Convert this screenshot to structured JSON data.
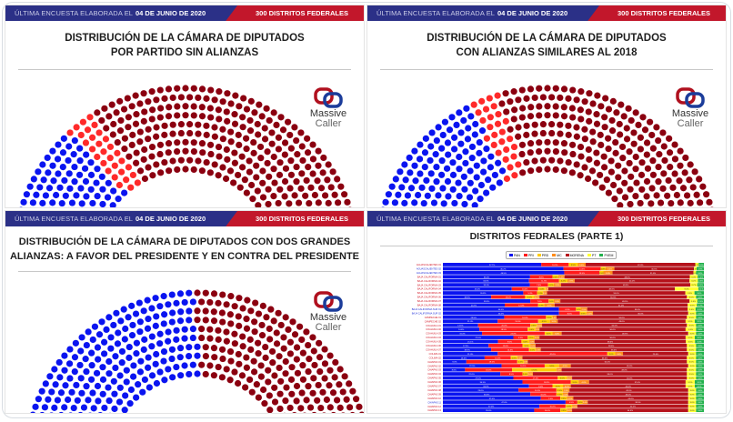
{
  "header": {
    "label": "ÚLTIMA ENCUESTA ELABORADA EL",
    "date": "04 DE JUNIO DE 2020",
    "districts": "300 DISTRITOS FEDERALES"
  },
  "logo": {
    "line1": "Massive",
    "line2": "Caller"
  },
  "colors": {
    "header_blue": "#2b3087",
    "header_red": "#c2172b",
    "pan": "#0a14f0",
    "pri": "#ff2a2a",
    "morena": "#8b0010",
    "other": "#7a1040"
  },
  "panels": [
    {
      "title1": "DISTRIBUCIÓN DE LA CÁMARA DE DIPUTADOS",
      "title2": "POR PARTIDO SIN ALIANZAS"
    },
    {
      "title1": "DISTRIBUCIÓN DE LA CÁMARA DE DIPUTADOS",
      "title2": "CON ALIANZAS SIMILARES AL 2018"
    },
    {
      "title1": "DISTRIBUCIÓN DE LA CÁMARA DE DIPUTADOS CON DOS GRANDES",
      "title2": "ALIANZAS: A FAVOR DEL PRESIDENTE Y EN CONTRA DEL PRESIDENTE"
    },
    {
      "title1": "DISTRITOS FEDRALES (PARTE 1)"
    }
  ],
  "chart_data": [
    {
      "type": "parliament",
      "total": 500,
      "groups": [
        {
          "color": "#0a14f0",
          "seats": 135
        },
        {
          "color": "#ff2a2a",
          "seats": 30
        },
        {
          "color": "#8b0010",
          "seats": 332
        },
        {
          "color": "#7a1040",
          "seats": 3
        }
      ]
    },
    {
      "type": "parliament",
      "total": 500,
      "groups": [
        {
          "color": "#0a14f0",
          "seats": 178
        },
        {
          "color": "#ff2a2a",
          "seats": 28
        },
        {
          "color": "#8b0010",
          "seats": 294
        }
      ]
    },
    {
      "type": "parliament",
      "total": 500,
      "groups": [
        {
          "color": "#0a14f0",
          "seats": 250
        },
        {
          "color": "#8b0010",
          "seats": 250
        }
      ]
    },
    {
      "type": "bar",
      "stacked": true,
      "orientation": "horizontal",
      "title": "DISTRITOS FEDRALES (PARTE 1)",
      "legend": [
        {
          "name": "PAN",
          "color": "#0a14f0"
        },
        {
          "name": "PRI",
          "color": "#ff1a1a"
        },
        {
          "name": "PRD",
          "color": "#ffcc00"
        },
        {
          "name": "MC",
          "color": "#ff8c1a"
        },
        {
          "name": "MORENA",
          "color": "#b5121b"
        },
        {
          "name": "PT",
          "color": "#ffff33"
        },
        {
          "name": "PVEM",
          "color": "#22b14c"
        }
      ],
      "rows": [
        {
          "label": "AGUASCALIENTES 01",
          "values": [
            37.7,
            10.5,
            3.5,
            3.0,
            42.0,
            1.3,
            2.0
          ]
        },
        {
          "label": "AGUASCALIENTES 02",
          "values": [
            46.2,
            14.3,
            1.8,
            3.4,
            30.5,
            1.0,
            2.8
          ]
        },
        {
          "label": "AGUASCALIENTES 03",
          "values": [
            46.5,
            13.5,
            1.5,
            3.5,
            31.0,
            1.0,
            3.0
          ]
        },
        {
          "label": "BAJA CALIFORNIA 01",
          "values": [
            33.4,
            8.6,
            2.2,
            2.4,
            48.0,
            3.0,
            2.4
          ]
        },
        {
          "label": "BAJA CALIFORNIA 02",
          "values": [
            33.0,
            11.5,
            3.2,
            2.8,
            44.0,
            3.2,
            2.3
          ]
        },
        {
          "label": "BAJA CALIFORNIA 03",
          "values": [
            33.3,
            7.0,
            2.2,
            2.8,
            49.5,
            2.7,
            2.5
          ]
        },
        {
          "label": "BAJA CALIFORNIA 04",
          "values": [
            26.4,
            10.0,
            3.0,
            1.0,
            48.5,
            9.0,
            2.1
          ]
        },
        {
          "label": "BAJA CALIFORNIA 05",
          "values": [
            30.8,
            5.3,
            2.3,
            1.5,
            53.0,
            3.5,
            3.6
          ]
        },
        {
          "label": "BAJA CALIFORNIA 06",
          "values": [
            18.5,
            13.0,
            3.5,
            2.0,
            56.5,
            3.5,
            3.0
          ]
        },
        {
          "label": "BAJA CALIFORNIA 07",
          "values": [
            33.5,
            7.0,
            2.0,
            2.5,
            49.5,
            3.0,
            2.5
          ]
        },
        {
          "label": "BAJA CALIFORNIA 08",
          "values": [
            23.7,
            12.8,
            2.3,
            4.0,
            51.0,
            3.5,
            2.7
          ]
        },
        {
          "label": "BAJA CALIFORNIA SUR 01",
          "values": [
            44.5,
            6.5,
            1.8,
            2.5,
            38.5,
            3.0,
            3.2
          ]
        },
        {
          "label": "BAJA CALIFORNIA SUR 02",
          "values": [
            44.5,
            8.0,
            2.5,
            2.5,
            36.5,
            3.0,
            3.0
          ]
        },
        {
          "label": "CAMPECHE 01",
          "values": [
            23.5,
            16.0,
            2.5,
            1.5,
            50.0,
            3.5,
            3.0
          ]
        },
        {
          "label": "CAMPECHE 02",
          "values": [
            21.0,
            15.5,
            4.5,
            3.0,
            49.0,
            3.5,
            3.5
          ]
        },
        {
          "label": "COAHUILA 01",
          "values": [
            13.5,
            20.0,
            2.5,
            2.0,
            55.5,
            3.5,
            3.0
          ]
        },
        {
          "label": "COAHUILA 02",
          "values": [
            14.0,
            18.5,
            3.0,
            1.5,
            56.0,
            4.0,
            3.0
          ]
        },
        {
          "label": "COAHUILA 03",
          "values": [
            15.0,
            24.0,
            3.0,
            3.5,
            48.5,
            3.0,
            3.0
          ]
        },
        {
          "label": "COAHUILA 04",
          "values": [
            27.0,
            5.5,
            2.5,
            2.0,
            56.0,
            3.5,
            3.5
          ]
        },
        {
          "label": "COAHUILA 05",
          "values": [
            21.1,
            9.0,
            3.0,
            2.0,
            58.0,
            3.5,
            3.4
          ]
        },
        {
          "label": "COAHUILA 06",
          "values": [
            17.5,
            13.0,
            3.0,
            2.0,
            58.0,
            3.5,
            3.0
          ]
        },
        {
          "label": "COAHUILA 07",
          "values": [
            18.5,
            14.5,
            2.5,
            2.0,
            56.0,
            3.5,
            3.0
          ]
        },
        {
          "label": "COLIMA 01",
          "values": [
            21.0,
            42.0,
            3.0,
            3.0,
            25.0,
            3.0,
            3.0
          ]
        },
        {
          "label": "COLIMA 02",
          "values": [
            16.0,
            10.0,
            2.5,
            2.0,
            63.0,
            3.5,
            3.0
          ]
        },
        {
          "label": "CHIAPAS 01",
          "values": [
            9.0,
            19.5,
            2.5,
            1.5,
            61.0,
            3.5,
            3.0
          ]
        },
        {
          "label": "CHIAPAS 02",
          "values": [
            22.5,
            16.5,
            5.5,
            4.5,
            45.0,
            3.0,
            3.0
          ]
        },
        {
          "label": "CHIAPAS 03",
          "values": [
            8.5,
            18.0,
            17.0,
            2.0,
            48.0,
            3.5,
            3.0
          ]
        },
        {
          "label": "CHIAPAS 04",
          "values": [
            22.0,
            8.5,
            2.0,
            2.0,
            59.0,
            3.5,
            3.0
          ]
        },
        {
          "label": "CHIAPAS 05",
          "values": [
            27.0,
            17.0,
            3.5,
            2.0,
            44.0,
            3.5,
            3.0
          ]
        },
        {
          "label": "CHIAPAS 06",
          "values": [
            30.5,
            18.5,
            3.0,
            4.0,
            37.0,
            3.5,
            3.5
          ]
        },
        {
          "label": "CHIAPAS 07",
          "values": [
            33.0,
            9.0,
            4.0,
            3.0,
            44.0,
            3.5,
            3.5
          ]
        },
        {
          "label": "CHIAPAS 08",
          "values": [
            29.0,
            14.5,
            2.5,
            2.5,
            45.5,
            3.0,
            3.0
          ]
        },
        {
          "label": "CHIAPAS 09",
          "values": [
            33.5,
            10.0,
            2.5,
            2.0,
            46.0,
            3.0,
            3.0
          ]
        },
        {
          "label": "CHIAPAS 10",
          "values": [
            37.5,
            7.5,
            2.5,
            2.5,
            44.0,
            3.0,
            3.0
          ]
        },
        {
          "label": "CHIAPAS 11",
          "values": [
            47.0,
            4.5,
            2.0,
            2.0,
            38.5,
            3.0,
            3.0
          ]
        },
        {
          "label": "CHIAPAS 12",
          "values": [
            37.0,
            10.0,
            2.5,
            2.0,
            42.5,
            3.0,
            3.0
          ]
        },
        {
          "label": "CHIAPAS 13",
          "values": [
            35.0,
            10.0,
            2.5,
            2.0,
            44.5,
            3.0,
            3.0
          ]
        }
      ]
    }
  ]
}
